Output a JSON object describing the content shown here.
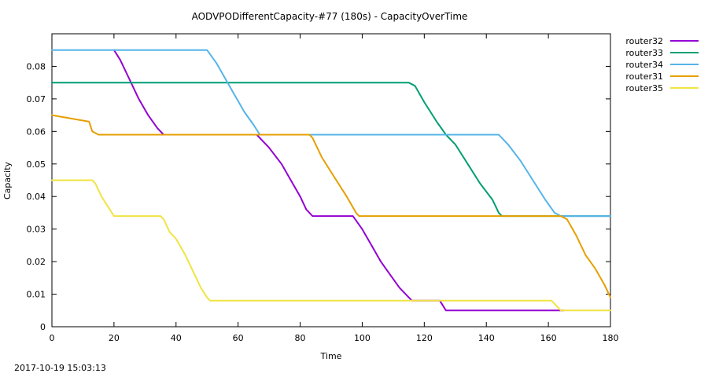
{
  "chart_data": {
    "type": "line",
    "title": "AODVPODifferentCapacity-#77 (180s) - CapacityOverTime",
    "xlabel": "Time",
    "ylabel": "Capacity",
    "xlim": [
      0,
      180
    ],
    "ylim": [
      0,
      0.09
    ],
    "x_ticks": [
      "0",
      "20",
      "40",
      "60",
      "80",
      "100",
      "120",
      "140",
      "160",
      "180"
    ],
    "y_ticks": [
      "0",
      "0.01",
      "0.02",
      "0.03",
      "0.04",
      "0.05",
      "0.06",
      "0.07",
      "0.08"
    ],
    "legend_position": "outside-top-right",
    "grid": false,
    "series": [
      {
        "name": "router32",
        "color": "#9400d3",
        "points": [
          [
            20,
            0.085
          ],
          [
            22,
            0.082
          ],
          [
            25,
            0.076
          ],
          [
            28,
            0.07
          ],
          [
            31,
            0.065
          ],
          [
            34,
            0.061
          ],
          [
            36,
            0.059
          ],
          [
            66,
            0.059
          ],
          [
            70,
            0.055
          ],
          [
            74,
            0.05
          ],
          [
            77,
            0.045
          ],
          [
            80,
            0.04
          ],
          [
            82,
            0.036
          ],
          [
            84,
            0.034
          ],
          [
            97,
            0.034
          ],
          [
            100,
            0.03
          ],
          [
            103,
            0.025
          ],
          [
            106,
            0.02
          ],
          [
            109,
            0.016
          ],
          [
            112,
            0.012
          ],
          [
            116,
            0.008
          ],
          [
            125,
            0.008
          ],
          [
            127,
            0.005
          ],
          [
            165,
            0.005
          ]
        ]
      },
      {
        "name": "router33",
        "color": "#009e73",
        "points": [
          [
            0,
            0.075
          ],
          [
            115,
            0.075
          ],
          [
            117,
            0.074
          ],
          [
            120,
            0.069
          ],
          [
            124,
            0.063
          ],
          [
            127,
            0.059
          ],
          [
            130,
            0.056
          ],
          [
            134,
            0.05
          ],
          [
            138,
            0.044
          ],
          [
            142,
            0.039
          ],
          [
            144,
            0.035
          ],
          [
            145,
            0.034
          ],
          [
            180,
            0.034
          ]
        ]
      },
      {
        "name": "router34",
        "color": "#56b4e9",
        "points": [
          [
            0,
            0.085
          ],
          [
            50,
            0.085
          ],
          [
            53,
            0.081
          ],
          [
            56,
            0.076
          ],
          [
            59,
            0.071
          ],
          [
            62,
            0.066
          ],
          [
            65,
            0.062
          ],
          [
            67,
            0.059
          ],
          [
            144,
            0.059
          ],
          [
            147,
            0.056
          ],
          [
            151,
            0.051
          ],
          [
            155,
            0.045
          ],
          [
            159,
            0.039
          ],
          [
            162,
            0.035
          ],
          [
            164,
            0.034
          ],
          [
            180,
            0.034
          ]
        ]
      },
      {
        "name": "router31",
        "color": "#e69f00",
        "points": [
          [
            0,
            0.065
          ],
          [
            12,
            0.063
          ],
          [
            13,
            0.06
          ],
          [
            15,
            0.059
          ],
          [
            83,
            0.059
          ],
          [
            84,
            0.058
          ],
          [
            87,
            0.052
          ],
          [
            91,
            0.046
          ],
          [
            95,
            0.04
          ],
          [
            98,
            0.035
          ],
          [
            99,
            0.034
          ],
          [
            164,
            0.034
          ],
          [
            166,
            0.033
          ],
          [
            169,
            0.028
          ],
          [
            172,
            0.022
          ],
          [
            175,
            0.018
          ],
          [
            178,
            0.013
          ],
          [
            180,
            0.009
          ]
        ]
      },
      {
        "name": "router35",
        "color": "#f0e442",
        "points": [
          [
            0,
            0.045
          ],
          [
            13,
            0.045
          ],
          [
            14,
            0.044
          ],
          [
            16,
            0.04
          ],
          [
            18,
            0.037
          ],
          [
            20,
            0.034
          ],
          [
            35,
            0.034
          ],
          [
            36,
            0.033
          ],
          [
            38,
            0.029
          ],
          [
            40,
            0.027
          ],
          [
            43,
            0.022
          ],
          [
            46,
            0.016
          ],
          [
            48,
            0.012
          ],
          [
            50,
            0.009
          ],
          [
            51,
            0.008
          ],
          [
            161,
            0.008
          ],
          [
            164,
            0.005
          ],
          [
            180,
            0.005
          ]
        ]
      }
    ]
  },
  "footer": {
    "timestamp": "2017-10-19 15:03:13"
  }
}
